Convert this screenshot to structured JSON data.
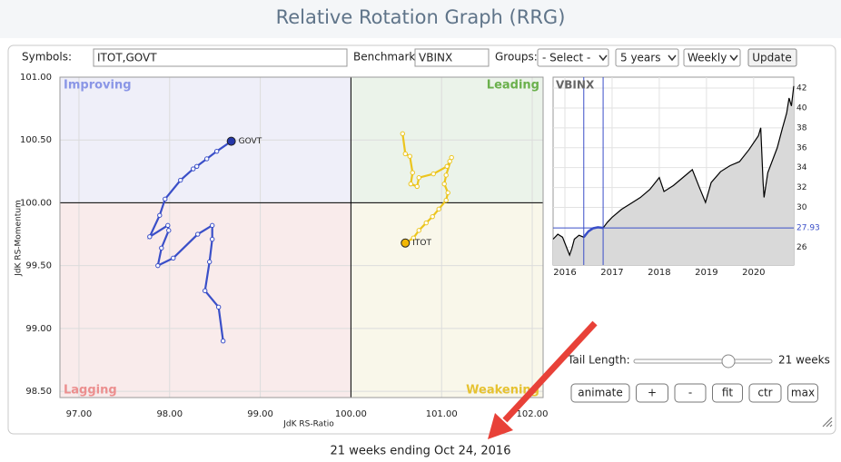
{
  "header": {
    "title": "Relative Rotation Graph (RRG)"
  },
  "controls": {
    "symbols_label": "Symbols:",
    "symbols": "ITOT,GOVT",
    "benchmark_label": "Benchmark:",
    "benchmark": "VBINX",
    "groups_label": "Groups:",
    "groups": "- Select -",
    "period": "5 years",
    "frequency": "Weekly",
    "update": "Update",
    "tail_length_label": "Tail Length:",
    "tail_length": "21 weeks",
    "buttons": [
      "animate",
      "+",
      "-",
      "fit",
      "ctr",
      "max"
    ]
  },
  "chart_data": [
    {
      "type": "scatter",
      "xlabel": "JdK RS-Ratio",
      "ylabel": "JdK RS-Momentum",
      "xlim": [
        96.79,
        102.12
      ],
      "ylim": [
        98.45,
        101.0
      ],
      "center": [
        100,
        100
      ],
      "grid": true,
      "xticks": [
        {
          "value": 97,
          "label": "97.00"
        },
        {
          "value": 98,
          "label": "98.00"
        },
        {
          "value": 99,
          "label": "99.00"
        },
        {
          "value": 100,
          "label": "100.00"
        },
        {
          "value": 101,
          "label": "101.00"
        },
        {
          "value": 102,
          "label": "102.00"
        }
      ],
      "yticks": [
        {
          "value": 98.5,
          "label": "98.50"
        },
        {
          "value": 99,
          "label": "99.00"
        },
        {
          "value": 99.5,
          "label": "99.50"
        },
        {
          "value": 100,
          "label": "100.00"
        },
        {
          "value": 100.5,
          "label": "100.50"
        },
        {
          "value": 101,
          "label": "101.00"
        }
      ],
      "quadrants": [
        {
          "name": "Improving",
          "color": "#8a96e6",
          "fill": "#efeff9"
        },
        {
          "name": "Leading",
          "color": "#6ab04c",
          "fill": "#ebf3ea"
        },
        {
          "name": "Lagging",
          "color": "#ec8f8f",
          "fill": "#f9ebeb"
        },
        {
          "name": "Weakening",
          "color": "#e6c230",
          "fill": "#f9f7ea"
        }
      ],
      "series": [
        {
          "name": "GOVT",
          "color": "#3a4fc8",
          "head": "#2536a8",
          "x": [
            98.59,
            98.54,
            98.39,
            98.44,
            98.47,
            98.47,
            98.31,
            98.04,
            97.87,
            97.91,
            97.99,
            97.98,
            97.78,
            97.89,
            97.95,
            98.12,
            98.26,
            98.3,
            98.41,
            98.52,
            98.68
          ],
          "y": [
            98.9,
            99.17,
            99.3,
            99.53,
            99.71,
            99.82,
            99.75,
            99.56,
            99.5,
            99.64,
            99.78,
            99.82,
            99.73,
            99.9,
            100.03,
            100.18,
            100.27,
            100.29,
            100.35,
            100.41,
            100.49
          ]
        },
        {
          "name": "ITOT",
          "color": "#ecc51e",
          "head": "#f2b705",
          "x": [
            100.57,
            100.6,
            100.65,
            100.68,
            100.66,
            100.73,
            100.75,
            100.91,
            101.06,
            101.09,
            101.11,
            101.05,
            101.03,
            101.07,
            101.05,
            100.97,
            100.9,
            100.83,
            100.75,
            100.69,
            100.6
          ],
          "y": [
            100.55,
            100.39,
            100.37,
            100.24,
            100.15,
            100.13,
            100.2,
            100.23,
            100.29,
            100.33,
            100.36,
            100.22,
            100.15,
            100.08,
            100.02,
            99.95,
            99.89,
            99.84,
            99.78,
            99.72,
            99.68
          ]
        }
      ]
    },
    {
      "type": "line",
      "title": "VBINX",
      "color": "#000000",
      "fill": "#d9d9d9",
      "grid": true,
      "xlim": [
        2015.75,
        2020.85
      ],
      "ylim": [
        24.2,
        43.1
      ],
      "xticks": [
        2016,
        2017,
        2018,
        2019,
        2020
      ],
      "yticks": [
        26,
        30,
        32,
        34,
        36,
        38,
        40,
        42
      ],
      "marker": {
        "value": 27.93,
        "color": "#3a4fc8"
      },
      "highlight_x": [
        2016.4,
        2016.81
      ],
      "highlight_color": "#3a4fc8",
      "x": [
        2015.75,
        2015.85,
        2015.95,
        2016.05,
        2016.1,
        2016.15,
        2016.2,
        2016.3,
        2016.4,
        2016.5,
        2016.6,
        2016.7,
        2016.81,
        2016.9,
        2017.0,
        2017.2,
        2017.4,
        2017.6,
        2017.8,
        2018.0,
        2018.1,
        2018.3,
        2018.5,
        2018.7,
        2018.85,
        2018.98,
        2019.1,
        2019.3,
        2019.5,
        2019.7,
        2019.9,
        2020.1,
        2020.15,
        2020.2,
        2020.22,
        2020.3,
        2020.5,
        2020.6,
        2020.7,
        2020.75,
        2020.8,
        2020.85
      ],
      "values": [
        26.8,
        27.3,
        27.0,
        25.8,
        25.2,
        25.9,
        26.8,
        27.2,
        27.0,
        27.6,
        27.9,
        28.0,
        27.93,
        28.5,
        29.0,
        29.8,
        30.4,
        31.0,
        31.8,
        33.0,
        31.6,
        32.2,
        33.0,
        33.8,
        32.0,
        30.5,
        32.5,
        33.6,
        34.2,
        34.6,
        35.8,
        37.2,
        38.0,
        32.5,
        31.0,
        33.5,
        36.0,
        37.8,
        39.5,
        41.0,
        40.2,
        42.2
      ]
    }
  ],
  "footer": "21 weeks ending Oct 24, 2016"
}
